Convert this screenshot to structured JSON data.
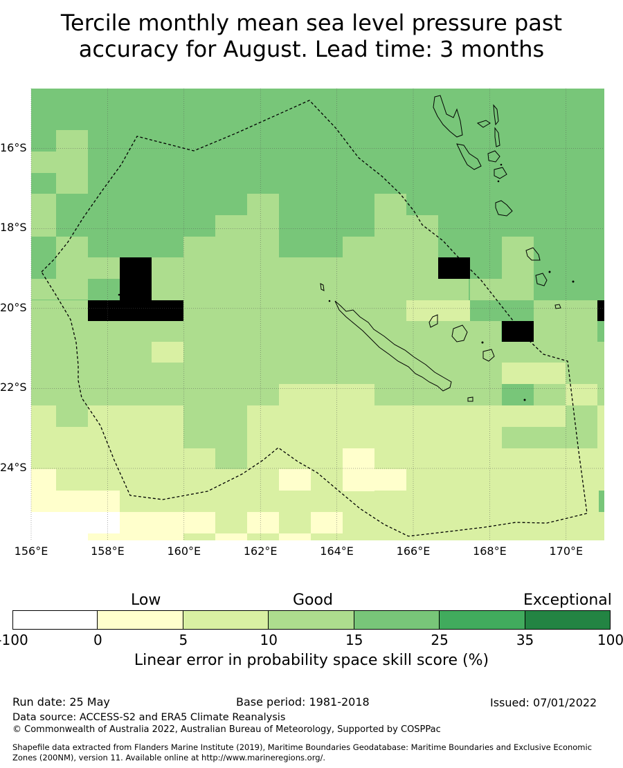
{
  "title": {
    "line1": "Tercile monthly mean sea level pressure past",
    "line2": "accuracy for August. Lead time: 3 months"
  },
  "map": {
    "lat_labels": [
      "16°S",
      "18°S",
      "20°S",
      "22°S",
      "24°S"
    ],
    "lon_labels": [
      "156°E",
      "158°E",
      "160°E",
      "162°E",
      "164°E",
      "166°E",
      "168°E",
      "170°E"
    ],
    "lat_values": [
      -16,
      -18,
      -20,
      -22,
      -24
    ],
    "lon_values": [
      156,
      158,
      160,
      162,
      164,
      166,
      168,
      170
    ],
    "extent": {
      "lon_min": 156,
      "lon_max": 171,
      "lat_min": -25.8,
      "lat_max": -14.5
    },
    "boundary": "Maritime Boundaries and Exclusive Economic Zones (200NM)",
    "land_features": [
      "Vanuatu",
      "New Caledonia",
      "Loyalty Islands"
    ]
  },
  "legend": {
    "categories": [
      "Low",
      "Good",
      "Exceptional"
    ],
    "ticks": [
      "-100",
      "0",
      "5",
      "10",
      "15",
      "25",
      "35",
      "100"
    ],
    "colors": [
      "#ffffff",
      "#ffffcc",
      "#d9f0a3",
      "#addd8e",
      "#78c679",
      "#41ab5d",
      "#238443"
    ],
    "label": "Linear error in probability space skill score (%)"
  },
  "footer": {
    "run_date": "Run date: 25 May",
    "base_period": "Base period: 1981-2018",
    "issued": "Issued: 07/01/2022",
    "data_source": "Data source: ACCESS-S2 and ERA5 Climate Reanalysis",
    "copyright": "© Commonwealth of Australia 2022, Australian Bureau of Meteorology, Supported by COSPPac",
    "shapefile_line1": "Shapefile data extracted from Flanders Marine Institute (2019), Maritime Boundaries Geodatabase: Maritime Boundaries and Exclusive Economic",
    "shapefile_line2": "Zones (200NM), version 11. Available online at http://www.marineregions.org/."
  }
}
